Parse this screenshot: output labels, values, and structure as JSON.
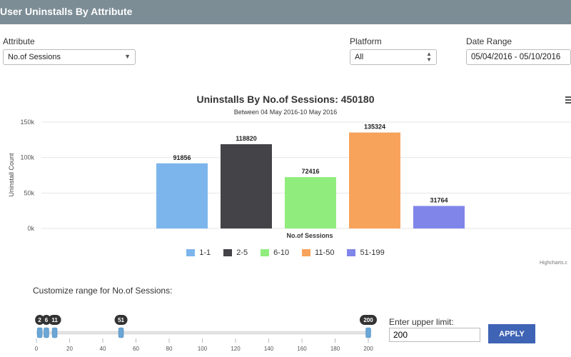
{
  "header": {
    "title": "User Uninstalls By Attribute"
  },
  "filters": {
    "attribute": {
      "label": "Attribute",
      "value": "No.of Sessions"
    },
    "platform": {
      "label": "Platform",
      "value": "All"
    },
    "date_range": {
      "label": "Date Range",
      "value": "05/04/2016 - 05/10/2016"
    }
  },
  "chart_data": {
    "type": "bar",
    "title": "Uninstalls By No.of Sessions: 450180",
    "subtitle": "Between 04 May 2016-10 May 2016",
    "xlabel": "No.of Sessions",
    "ylabel": "Uninstall Count",
    "ylim": [
      0,
      150000
    ],
    "yticks": [
      "0k",
      "50k",
      "100k",
      "150k"
    ],
    "categories": [
      "1-1",
      "2-5",
      "6-10",
      "11-50",
      "51-199"
    ],
    "values": [
      91856,
      118820,
      72416,
      135324,
      31764
    ],
    "colors": [
      "#7cb5ec",
      "#434348",
      "#90ed7d",
      "#f7a35c",
      "#8085e9"
    ],
    "grid": true,
    "legend": "bottom-center",
    "credits": "Highcharts.c"
  },
  "range": {
    "title": "Customize range for No.of Sessions:",
    "min": 0,
    "max": 200,
    "ticks": [
      "0",
      "20",
      "40",
      "60",
      "80",
      "100",
      "120",
      "140",
      "160",
      "180",
      "200"
    ],
    "handles": [
      {
        "value": 2,
        "label": "2"
      },
      {
        "value": 6,
        "label": "6"
      },
      {
        "value": 11,
        "label": "11"
      },
      {
        "value": 51,
        "label": "51"
      },
      {
        "value": 200,
        "label": "200"
      }
    ],
    "upper_label": "Enter upper limit:",
    "upper_value": "200",
    "apply_label": "APPLY"
  }
}
